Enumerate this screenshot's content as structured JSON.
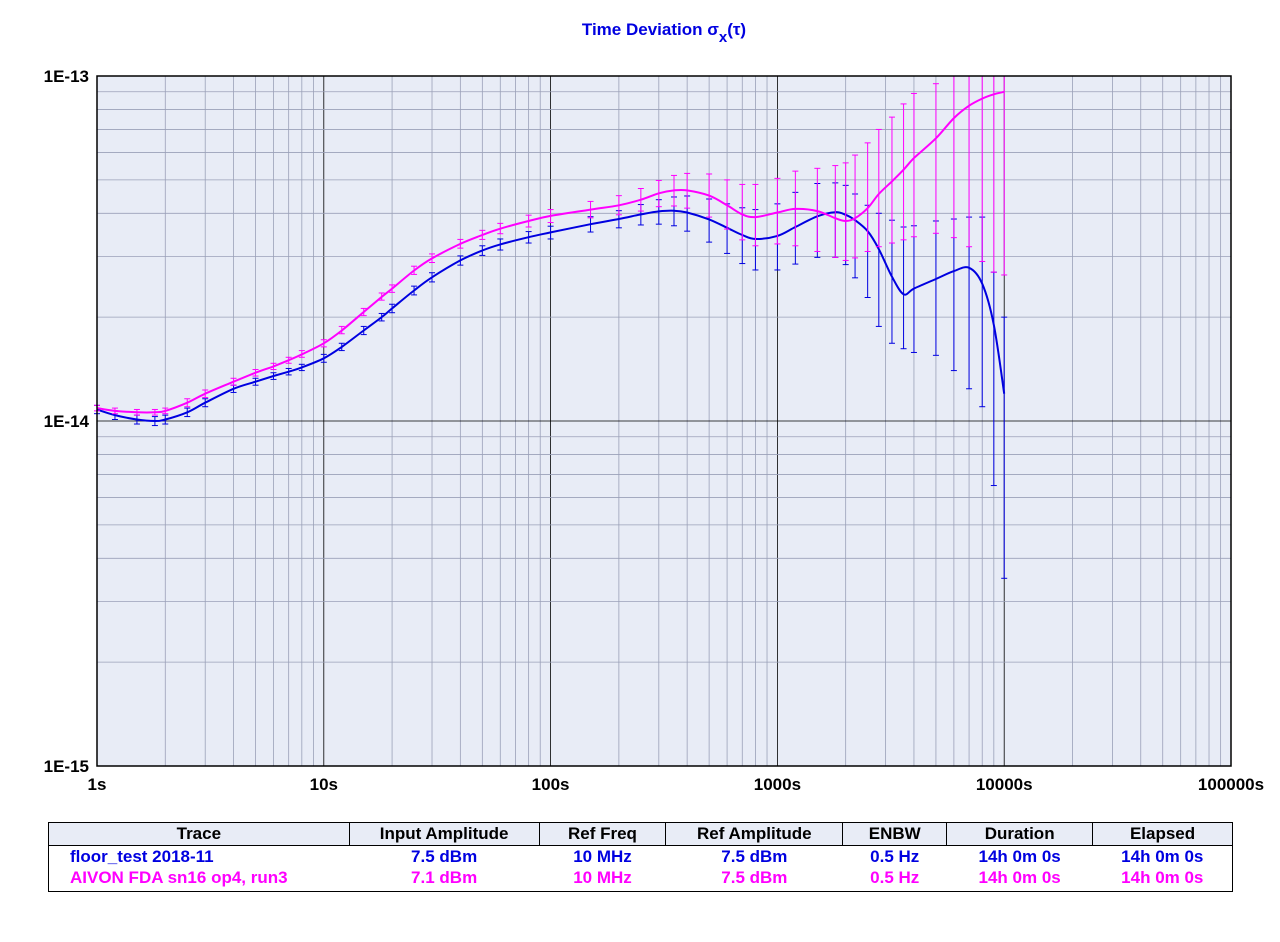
{
  "chart_data": {
    "type": "line",
    "title_main": "Time Deviation σ",
    "title_sub": "x",
    "title_tail": "(τ)",
    "xscale": "log",
    "yscale": "log",
    "xlim": [
      1,
      100000
    ],
    "ylim": [
      1e-15,
      1e-13
    ],
    "grid": true,
    "x_tick_labels": [
      "1s",
      "10s",
      "100s",
      "1000s",
      "10000s",
      "100000s"
    ],
    "y_tick_labels": [
      "1E-13",
      "1E-14",
      "1E-15"
    ],
    "plot_background": "#e8ecf6",
    "series": [
      {
        "name": "floor_test 2018-11",
        "color": "#0000e0",
        "x": [
          1,
          1.2,
          1.5,
          1.8,
          2,
          2.5,
          3,
          4,
          5,
          6,
          7,
          8,
          10,
          12,
          15,
          18,
          20,
          25,
          30,
          40,
          50,
          60,
          80,
          100,
          150,
          200,
          250,
          300,
          350,
          400,
          500,
          600,
          700,
          800,
          1000,
          1200,
          1500,
          1800,
          2000,
          2200,
          2500,
          2800,
          3200,
          3600,
          4000,
          5000,
          6000,
          7000,
          8000,
          9000,
          10000
        ],
        "y": [
          1.08e-14,
          1.04e-14,
          1.01e-14,
          1e-14,
          1.01e-14,
          1.06e-14,
          1.13e-14,
          1.24e-14,
          1.3e-14,
          1.35e-14,
          1.39e-14,
          1.43e-14,
          1.52e-14,
          1.64e-14,
          1.83e-14,
          2e-14,
          2.12e-14,
          2.39e-14,
          2.61e-14,
          2.92e-14,
          3.12e-14,
          3.25e-14,
          3.41e-14,
          3.52e-14,
          3.72e-14,
          3.85e-14,
          3.97e-14,
          4.05e-14,
          4.07e-14,
          4.02e-14,
          3.84e-14,
          3.63e-14,
          3.46e-14,
          3.37e-14,
          3.44e-14,
          3.65e-14,
          3.92e-14,
          4.03e-14,
          3.96e-14,
          3.82e-14,
          3.55e-14,
          3.15e-14,
          2.62e-14,
          2.33e-14,
          2.42e-14,
          2.58e-14,
          2.72e-14,
          2.78e-14,
          2.5e-14,
          1.9e-14,
          1.2e-14
        ],
        "err_low": [
          1.05e-14,
          1.01e-14,
          9.8e-15,
          9.7e-15,
          9.8e-15,
          1.03e-14,
          1.1e-14,
          1.21e-14,
          1.27e-14,
          1.32e-14,
          1.36e-14,
          1.4e-14,
          1.48e-14,
          1.6e-14,
          1.78e-14,
          1.95e-14,
          2.06e-14,
          2.32e-14,
          2.53e-14,
          2.83e-14,
          3.02e-14,
          3.13e-14,
          3.28e-14,
          3.37e-14,
          3.53e-14,
          3.63e-14,
          3.7e-14,
          3.72e-14,
          3.68e-14,
          3.55e-14,
          3.3e-14,
          3.06e-14,
          2.86e-14,
          2.74e-14,
          2.74e-14,
          2.85e-14,
          2.98e-14,
          2.98e-14,
          2.84e-14,
          2.6e-14,
          2.28e-14,
          1.88e-14,
          1.68e-14,
          1.62e-14,
          1.58e-14,
          1.55e-14,
          1.4e-14,
          1.24e-14,
          1.1e-14,
          6.5e-15,
          3.5e-15
        ],
        "err_high": [
          1.11e-14,
          1.07e-14,
          1.04e-14,
          1.03e-14,
          1.04e-14,
          1.09e-14,
          1.16e-14,
          1.27e-14,
          1.33e-14,
          1.38e-14,
          1.42e-14,
          1.46e-14,
          1.56e-14,
          1.68e-14,
          1.88e-14,
          2.05e-14,
          2.18e-14,
          2.46e-14,
          2.69e-14,
          3.01e-14,
          3.22e-14,
          3.37e-14,
          3.54e-14,
          3.67e-14,
          3.91e-14,
          4.07e-14,
          4.24e-14,
          4.38e-14,
          4.46e-14,
          4.49e-14,
          4.4e-14,
          4.26e-14,
          4.15e-14,
          4.1e-14,
          4.26e-14,
          4.6e-14,
          4.88e-14,
          4.9e-14,
          4.82e-14,
          4.55e-14,
          4.22e-14,
          4e-14,
          3.82e-14,
          3.65e-14,
          3.68e-14,
          3.8e-14,
          3.85e-14,
          3.9e-14,
          3.9e-14,
          2.7e-14,
          2e-14
        ]
      },
      {
        "name": "AIVON FDA sn16 op4, run3",
        "color": "#ff00ff",
        "x": [
          1,
          1.2,
          1.5,
          1.8,
          2,
          2.5,
          3,
          4,
          5,
          6,
          7,
          8,
          10,
          12,
          15,
          18,
          20,
          25,
          30,
          40,
          50,
          60,
          80,
          100,
          150,
          200,
          250,
          300,
          350,
          400,
          500,
          600,
          700,
          800,
          1000,
          1200,
          1500,
          1800,
          2000,
          2200,
          2500,
          2800,
          3200,
          3600,
          4000,
          5000,
          6000,
          7000,
          8000,
          9000,
          10000
        ],
        "y": [
          1.09e-14,
          1.07e-14,
          1.06e-14,
          1.06e-14,
          1.07e-14,
          1.13e-14,
          1.2e-14,
          1.3e-14,
          1.38e-14,
          1.44e-14,
          1.5e-14,
          1.56e-14,
          1.68e-14,
          1.83e-14,
          2.07e-14,
          2.29e-14,
          2.42e-14,
          2.73e-14,
          2.96e-14,
          3.26e-14,
          3.46e-14,
          3.61e-14,
          3.8e-14,
          3.93e-14,
          4.1e-14,
          4.22e-14,
          4.38e-14,
          4.57e-14,
          4.66e-14,
          4.66e-14,
          4.5e-14,
          4.22e-14,
          3.97e-14,
          3.9e-14,
          4.02e-14,
          4.12e-14,
          4.06e-14,
          3.87e-14,
          3.8e-14,
          3.87e-14,
          4.14e-14,
          4.55e-14,
          4.95e-14,
          5.35e-14,
          5.78e-14,
          6.6e-14,
          7.55e-14,
          8.2e-14,
          8.6e-14,
          8.85e-14,
          9e-14
        ],
        "err_low": [
          1.07e-14,
          1.05e-14,
          1.04e-14,
          1.04e-14,
          1.05e-14,
          1.1e-14,
          1.17e-14,
          1.27e-14,
          1.35e-14,
          1.41e-14,
          1.47e-14,
          1.53e-14,
          1.64e-14,
          1.79e-14,
          2.02e-14,
          2.24e-14,
          2.36e-14,
          2.66e-14,
          2.88e-14,
          3.17e-14,
          3.36e-14,
          3.49e-14,
          3.65e-14,
          3.76e-14,
          3.88e-14,
          3.96e-14,
          4.06e-14,
          4.18e-14,
          4.2e-14,
          4.14e-14,
          3.9e-14,
          3.6e-14,
          3.35e-14,
          3.22e-14,
          3.26e-14,
          3.22e-14,
          3.1e-14,
          2.98e-14,
          2.92e-14,
          2.97e-14,
          3.1e-14,
          3.2e-14,
          3.28e-14,
          3.35e-14,
          3.42e-14,
          3.5e-14,
          3.4e-14,
          3.2e-14,
          2.9e-14,
          2.7e-14,
          2.65e-14
        ],
        "err_high": [
          1.11e-14,
          1.09e-14,
          1.08e-14,
          1.08e-14,
          1.09e-14,
          1.16e-14,
          1.23e-14,
          1.33e-14,
          1.41e-14,
          1.47e-14,
          1.53e-14,
          1.6e-14,
          1.72e-14,
          1.88e-14,
          2.12e-14,
          2.35e-14,
          2.48e-14,
          2.81e-14,
          3.05e-14,
          3.36e-14,
          3.57e-14,
          3.74e-14,
          3.95e-14,
          4.1e-14,
          4.33e-14,
          4.5e-14,
          4.72e-14,
          4.98e-14,
          5.15e-14,
          5.22e-14,
          5.2e-14,
          5e-14,
          4.85e-14,
          4.85e-14,
          5.05e-14,
          5.3e-14,
          5.4e-14,
          5.5e-14,
          5.6e-14,
          5.9e-14,
          6.4e-14,
          7e-14,
          7.6e-14,
          8.3e-14,
          8.9e-14,
          9.5e-14,
          1e-13,
          1e-13,
          1e-13,
          1e-13,
          1e-13
        ]
      }
    ]
  },
  "legend": {
    "headers": [
      "Trace",
      "Input Amplitude",
      "Ref Freq",
      "Ref Amplitude",
      "ENBW",
      "Duration",
      "Elapsed"
    ],
    "rows": [
      {
        "trace": "floor_test 2018-11",
        "input_amplitude": "7.5 dBm",
        "ref_freq": "10 MHz",
        "ref_amplitude": "7.5 dBm",
        "enbw": "0.5 Hz",
        "duration": "14h 0m 0s",
        "elapsed": "14h 0m 0s",
        "color": "#0000e0"
      },
      {
        "trace": "AIVON FDA sn16 op4, run3",
        "input_amplitude": "7.1 dBm",
        "ref_freq": "10 MHz",
        "ref_amplitude": "7.5 dBm",
        "enbw": "0.5 Hz",
        "duration": "14h 0m 0s",
        "elapsed": "14h 0m 0s",
        "color": "#ff00ff"
      }
    ]
  }
}
